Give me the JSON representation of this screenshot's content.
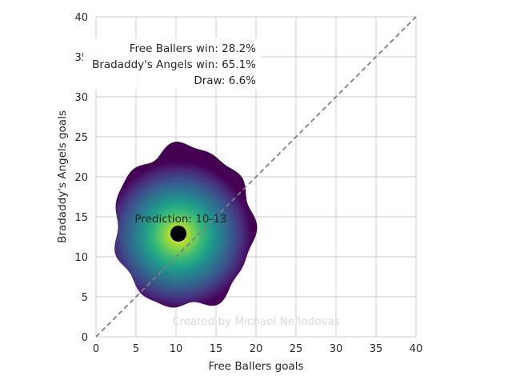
{
  "chart_data": {
    "type": "heatmap",
    "title": "",
    "xlabel": "Free Ballers goals",
    "ylabel": "Bradaddy's Angels goals",
    "xlim": [
      0,
      40
    ],
    "ylim": [
      0,
      40
    ],
    "xticks": [
      0,
      5,
      10,
      15,
      20,
      25,
      30,
      35,
      40
    ],
    "yticks": [
      0,
      5,
      10,
      15,
      20,
      25,
      30,
      35,
      40
    ],
    "grid": true,
    "colormap": "viridis",
    "density_peak": [
      10.3,
      12.7
    ],
    "density_extent": {
      "x": [
        2.3,
        19.7
      ],
      "y": [
        3.6,
        23.8
      ]
    },
    "prediction_point": {
      "x": 10.3,
      "y": 12.9
    },
    "prediction_label": "Prediction: 10-13",
    "diagonal": {
      "from": [
        0,
        0
      ],
      "to": [
        40,
        40
      ],
      "style": "dashed"
    },
    "win_probabilities": {
      "team1": "Free Ballers win: 28.2%",
      "team2": "Bradaddy's Angels win: 65.1%",
      "draw": "Draw: 6.6%"
    },
    "watermark": "Created by Michael Nefiodovas",
    "colors": {
      "viridis": [
        "#440154",
        "#482878",
        "#3e4a89",
        "#31688e",
        "#26828e",
        "#1f9e89",
        "#35b779",
        "#6ece58",
        "#b5de2b",
        "#fde725"
      ],
      "grid": "#cccccc",
      "diagonal": "#7f7f7f",
      "point": "#000000"
    }
  }
}
